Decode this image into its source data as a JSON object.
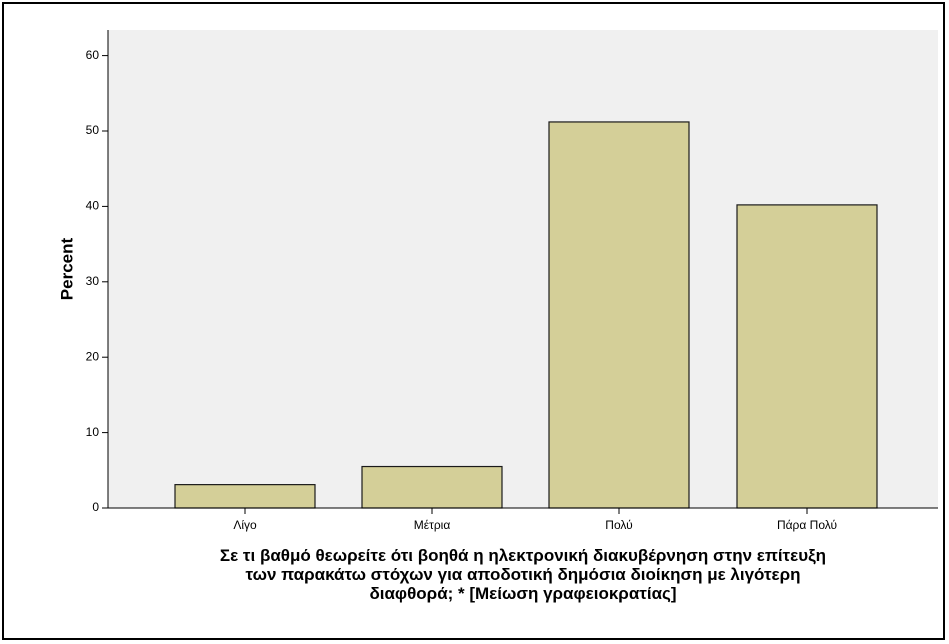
{
  "chart_data": {
    "type": "bar",
    "categories": [
      "Λίγο",
      "Μέτρια",
      "Πολύ",
      "Πάρα Πολύ"
    ],
    "values": [
      3.1,
      5.5,
      51.2,
      40.2
    ],
    "xlabel_lines": [
      "Σε τι βαθμό θεωρείτε ότι βοηθά η ηλεκτρονική διακυβέρνηση στην επίτευξη",
      "των παρακάτω στόχων για αποδοτική δημόσια διοίκηση με λιγότερη",
      "διαφθορά; * [Μείωση γραφειοκρατίας]"
    ],
    "ylabel": "Percent",
    "ylim": [
      0,
      62
    ],
    "yticks": [
      0,
      10,
      20,
      30,
      40,
      50,
      60
    ],
    "grid": false,
    "legend": "none",
    "colors": {
      "bar_fill": "#d4cf98",
      "bar_stroke": "#1a1a1a",
      "plot_background": "#f0f0f0"
    }
  }
}
